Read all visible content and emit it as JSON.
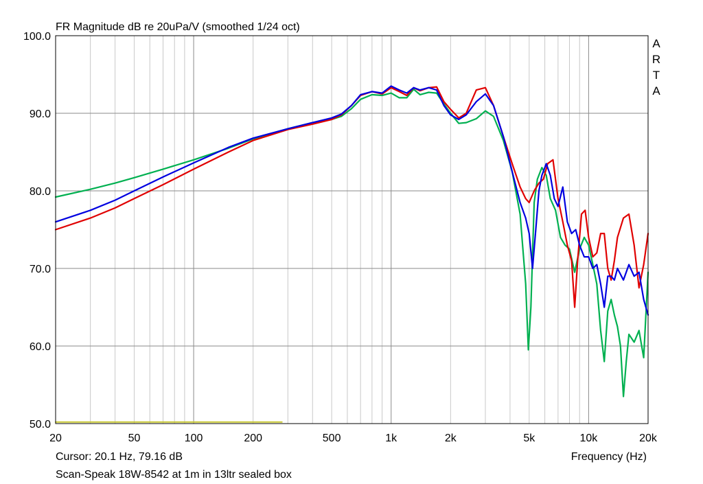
{
  "chart_data": {
    "type": "line",
    "title": "FR Magnitude dB re 20uPa/V (smoothed 1/24 oct)",
    "brand": "ARTA",
    "xlabel": "Frequency (Hz)",
    "cursor_text": "Cursor: 20.1 Hz, 79.16 dB",
    "caption": "Scan-Speak 18W-8542 at 1m in 13ltr sealed box",
    "x_scale": "log",
    "xlim": [
      20,
      20000
    ],
    "ylim": [
      50,
      100
    ],
    "grid": true,
    "x_ticks": [
      {
        "value": 20,
        "label": "20"
      },
      {
        "value": 50,
        "label": "50"
      },
      {
        "value": 100,
        "label": "100"
      },
      {
        "value": 200,
        "label": "200"
      },
      {
        "value": 500,
        "label": "500"
      },
      {
        "value": 1000,
        "label": "1k"
      },
      {
        "value": 2000,
        "label": "2k"
      },
      {
        "value": 5000,
        "label": "5k"
      },
      {
        "value": 10000,
        "label": "10k"
      },
      {
        "value": 20000,
        "label": "20k"
      }
    ],
    "y_ticks": [
      {
        "value": 50,
        "label": "50.0"
      },
      {
        "value": 60,
        "label": "60.0"
      },
      {
        "value": 70,
        "label": "70.0"
      },
      {
        "value": 80,
        "label": "80.0"
      },
      {
        "value": 90,
        "label": "90.0"
      },
      {
        "value": 100,
        "label": "100.0"
      }
    ],
    "series": [
      {
        "color": "#00b050",
        "x": [
          20,
          30,
          40,
          50,
          70,
          100,
          150,
          200,
          300,
          400,
          500,
          560,
          630,
          700,
          800,
          900,
          1000,
          1100,
          1200,
          1300,
          1400,
          1550,
          1700,
          1850,
          2000,
          2200,
          2400,
          2700,
          3000,
          3300,
          3700,
          4100,
          4500,
          4800,
          4950,
          5100,
          5300,
          5500,
          5800,
          6100,
          6400,
          6800,
          7200,
          7600,
          8000,
          8500,
          9000,
          9500,
          10000,
          10500,
          11000,
          11500,
          12000,
          12500,
          13000,
          13500,
          14000,
          14500,
          15000,
          15500,
          16000,
          17000,
          18000,
          19000,
          20000
        ],
        "y": [
          79.2,
          80.2,
          81.0,
          81.7,
          82.8,
          84.0,
          85.5,
          86.7,
          88.0,
          88.8,
          89.2,
          89.6,
          90.6,
          91.8,
          92.4,
          92.3,
          92.6,
          92.0,
          92.0,
          93.1,
          92.4,
          92.7,
          92.6,
          91.2,
          90.0,
          88.7,
          88.8,
          89.3,
          90.3,
          89.6,
          86.5,
          82.5,
          77.0,
          68.0,
          59.5,
          65.0,
          78.5,
          81.5,
          83.0,
          82.0,
          79.0,
          77.5,
          74.0,
          73.0,
          72.5,
          69.5,
          72.5,
          74.0,
          73.0,
          70.5,
          68.0,
          62.0,
          58.0,
          64.5,
          66.0,
          64.0,
          62.5,
          60.0,
          53.5,
          58.0,
          61.5,
          60.5,
          62.0,
          58.5,
          69.5
        ]
      },
      {
        "color": "#e00000",
        "x": [
          20,
          30,
          40,
          50,
          70,
          100,
          150,
          200,
          300,
          400,
          500,
          560,
          630,
          700,
          800,
          900,
          1000,
          1100,
          1200,
          1300,
          1400,
          1550,
          1700,
          1850,
          2000,
          2200,
          2400,
          2700,
          3000,
          3300,
          3700,
          4100,
          4500,
          4800,
          5000,
          5300,
          5600,
          5900,
          6200,
          6600,
          7000,
          7400,
          7800,
          8200,
          8500,
          8800,
          9200,
          9600,
          10000,
          10500,
          11000,
          11500,
          12000,
          12500,
          13000,
          13500,
          14000,
          15000,
          16000,
          17000,
          18000,
          19000,
          20000
        ],
        "y": [
          75.0,
          76.5,
          77.8,
          79.0,
          80.8,
          82.8,
          85.0,
          86.5,
          87.9,
          88.6,
          89.2,
          89.8,
          91.0,
          92.3,
          92.8,
          92.5,
          93.3,
          92.8,
          92.3,
          93.3,
          92.9,
          93.3,
          93.4,
          91.5,
          90.5,
          89.4,
          90.0,
          93.0,
          93.3,
          91.0,
          87.0,
          83.5,
          80.5,
          79.0,
          78.5,
          80.0,
          81.0,
          81.5,
          83.5,
          84.0,
          79.0,
          76.0,
          73.0,
          71.0,
          65.0,
          71.0,
          77.0,
          77.5,
          74.0,
          71.5,
          72.0,
          74.5,
          74.5,
          70.0,
          68.5,
          71.0,
          74.0,
          76.5,
          77.0,
          73.0,
          67.5,
          70.5,
          74.5
        ]
      },
      {
        "color": "#0000e0",
        "x": [
          20,
          30,
          40,
          50,
          70,
          100,
          150,
          200,
          300,
          400,
          500,
          560,
          630,
          700,
          800,
          900,
          1000,
          1100,
          1200,
          1300,
          1400,
          1550,
          1700,
          1850,
          2000,
          2200,
          2400,
          2700,
          3000,
          3300,
          3700,
          4100,
          4500,
          4800,
          5000,
          5200,
          5400,
          5600,
          5800,
          6100,
          6400,
          6700,
          7000,
          7400,
          7800,
          8200,
          8600,
          9000,
          9500,
          10000,
          10500,
          11000,
          11500,
          12000,
          12500,
          13000,
          13500,
          14000,
          15000,
          16000,
          17000,
          18000,
          19000,
          20000
        ],
        "y": [
          76.0,
          77.5,
          78.8,
          80.0,
          81.8,
          83.6,
          85.6,
          86.8,
          88.0,
          88.8,
          89.4,
          89.9,
          91.0,
          92.4,
          92.8,
          92.6,
          93.5,
          93.0,
          92.6,
          93.3,
          93.0,
          93.3,
          93.0,
          91.0,
          89.8,
          89.2,
          89.8,
          91.5,
          92.5,
          91.0,
          87.0,
          82.5,
          78.5,
          76.5,
          74.5,
          70.0,
          75.0,
          80.0,
          82.0,
          83.5,
          82.0,
          79.0,
          78.0,
          80.5,
          76.0,
          74.5,
          75.0,
          73.0,
          71.5,
          71.5,
          70.0,
          70.5,
          68.0,
          65.0,
          69.0,
          69.0,
          68.5,
          70.0,
          68.5,
          70.5,
          69.0,
          69.5,
          66.0,
          64.0
        ]
      },
      {
        "color": "#c8c832",
        "x": [
          20,
          280
        ],
        "y": [
          50.2,
          50.2
        ]
      }
    ]
  }
}
